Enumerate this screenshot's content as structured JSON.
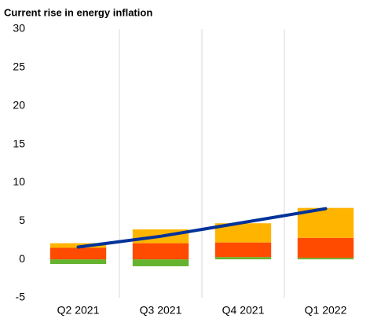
{
  "chart_data": {
    "type": "bar",
    "stacked": true,
    "title": "Current rise in energy inflation",
    "categories": [
      "Q2 2021",
      "Q3 2021",
      "Q4 2021",
      "Q1 2022"
    ],
    "series": [
      {
        "type": "bar",
        "color": "#65b32e",
        "values": [
          -0.6,
          -0.9,
          0.3,
          0.2
        ]
      },
      {
        "type": "bar",
        "color": "#ff4b00",
        "values": [
          1.5,
          2.1,
          1.9,
          2.6
        ]
      },
      {
        "type": "bar",
        "color": "#ffb400",
        "values": [
          0.6,
          1.8,
          2.5,
          3.9
        ]
      },
      {
        "type": "line",
        "color": "#003299",
        "values": [
          1.6,
          3.0,
          4.8,
          6.6
        ]
      }
    ],
    "ylim": [
      -5,
      30
    ],
    "yticks": [
      -5,
      0,
      5,
      10,
      15,
      20,
      25,
      30
    ],
    "grid": false
  }
}
